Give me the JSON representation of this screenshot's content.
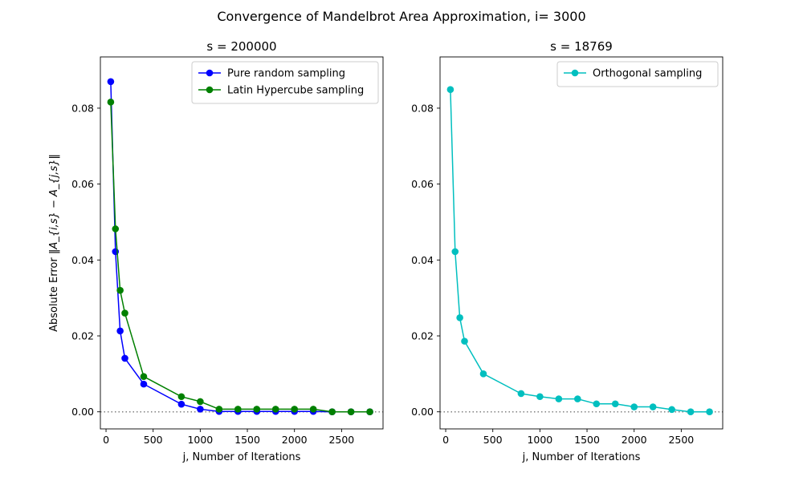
{
  "figure": {
    "title": "Convergence of Mandelbrot Area Approximation, i= 3000"
  },
  "chart_data": [
    {
      "type": "line",
      "title": "s = 200000",
      "xlabel": "j, Number of Iterations",
      "ylabel_main": "Absolute Error ",
      "ylabel_math": "‖A_{i,s} − A_{j,s}‖",
      "xlim": [
        -60,
        2940
      ],
      "ylim": [
        -0.0045,
        0.0935
      ],
      "xticks": [
        0,
        500,
        1000,
        1500,
        2000,
        2500
      ],
      "yticks": [
        0.0,
        0.02,
        0.04,
        0.06,
        0.08
      ],
      "ytick_labels": [
        "0.00",
        "0.02",
        "0.04",
        "0.06",
        "0.08"
      ],
      "reference_line": {
        "y": 0,
        "style": "dotted",
        "color": "#808080"
      },
      "legend": "top-right",
      "series": [
        {
          "name": "Pure random sampling",
          "color": "#0000ff",
          "x": [
            50,
            100,
            150,
            200,
            400,
            800,
            1000,
            1200,
            1400,
            1600,
            1800,
            2000,
            2200,
            2400,
            2600,
            2800
          ],
          "y": [
            0.087,
            0.0422,
            0.0213,
            0.0141,
            0.0073,
            0.002,
            0.0007,
            0.0001,
            0.0001,
            0.0001,
            0.0001,
            0.0001,
            0.0001,
            0.0,
            0.0,
            0.0
          ]
        },
        {
          "name": "Latin Hypercube sampling",
          "color": "#008000",
          "x": [
            50,
            100,
            150,
            200,
            400,
            800,
            1000,
            1200,
            1400,
            1600,
            1800,
            2000,
            2200,
            2400,
            2600,
            2800
          ],
          "y": [
            0.0816,
            0.0482,
            0.032,
            0.026,
            0.0093,
            0.004,
            0.0027,
            0.0007,
            0.0007,
            0.0007,
            0.0007,
            0.0007,
            0.0007,
            0.0,
            0.0,
            0.0
          ]
        }
      ]
    },
    {
      "type": "line",
      "title": "s = 18769",
      "xlabel": "j, Number of Iterations",
      "xlim": [
        -60,
        2940
      ],
      "ylim": [
        -0.0045,
        0.0935
      ],
      "xticks": [
        0,
        500,
        1000,
        1500,
        2000,
        2500
      ],
      "yticks": [
        0.0,
        0.02,
        0.04,
        0.06,
        0.08
      ],
      "ytick_labels": [
        "0.00",
        "0.02",
        "0.04",
        "0.06",
        "0.08"
      ],
      "reference_line": {
        "y": 0,
        "style": "dotted",
        "color": "#808080"
      },
      "legend": "top-right",
      "series": [
        {
          "name": "Orthogonal sampling",
          "color": "#00bfbf",
          "x": [
            50,
            100,
            150,
            200,
            400,
            800,
            1000,
            1200,
            1400,
            1600,
            1800,
            2000,
            2200,
            2400,
            2600,
            2800
          ],
          "y": [
            0.0849,
            0.0422,
            0.0248,
            0.0186,
            0.01,
            0.0048,
            0.004,
            0.0034,
            0.0034,
            0.0021,
            0.0021,
            0.0013,
            0.0013,
            0.0006,
            0.0,
            0.0
          ]
        }
      ]
    }
  ]
}
